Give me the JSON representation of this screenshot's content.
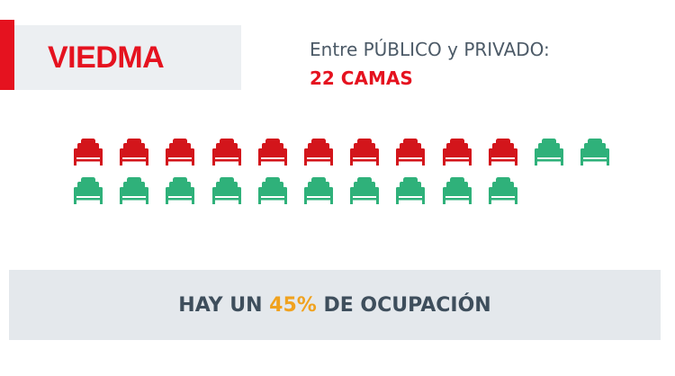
{
  "city": "VIEDMA",
  "subtitle": "Entre PÚBLICO y PRIVADO:",
  "beds_total_label": "22 CAMAS",
  "beds": {
    "total": 22,
    "occupied": 10,
    "available": 12,
    "occupied_color": "#d3151b",
    "available_color": "#2fb17a",
    "icon": "bed-icon"
  },
  "footer": {
    "prefix": "HAY UN ",
    "percent": "45%",
    "suffix": " DE OCUPACIÓN",
    "percent_color": "#f0a21f"
  },
  "colors": {
    "accent_red": "#e5121f",
    "panel_gray": "#eceff2",
    "band_gray": "#e4e8ec",
    "text_slate": "#3e4e5c"
  }
}
